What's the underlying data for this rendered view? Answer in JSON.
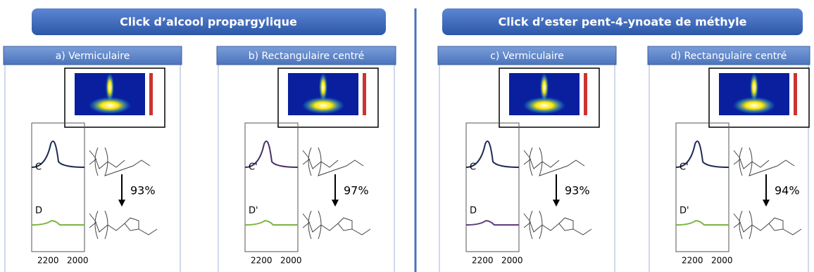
{
  "headers": [
    "Click d’alcool propargylique",
    "Click d’ester pent-4-ynoate de méthyle"
  ],
  "panels": [
    {
      "title": "a) Vermiculaire",
      "top_label": "C",
      "bottom_label": "D",
      "yield": "93%",
      "xticks": [
        "2200",
        "2000"
      ],
      "top_color": "#1c2a55",
      "bottom_color": "#7cb342"
    },
    {
      "title": "b) Rectangulaire centré",
      "top_label": "C'",
      "bottom_label": "D'",
      "yield": "97%",
      "xticks": [
        "2200",
        "2000"
      ],
      "top_color": "#4a2f66",
      "bottom_color": "#7cb342"
    },
    {
      "title": "c) Vermiculaire",
      "top_label": "C",
      "bottom_label": "D",
      "yield": "93%",
      "xticks": [
        "2200",
        "2000"
      ],
      "top_color": "#1c2a55",
      "bottom_color": "#5e3b7a"
    },
    {
      "title": "d) Rectangulaire centré",
      "top_label": "C'",
      "bottom_label": "D'",
      "yield": "94%",
      "xticks": [
        "2200",
        "2000"
      ],
      "top_color": "#1c2a55",
      "bottom_color": "#7cb342"
    }
  ]
}
